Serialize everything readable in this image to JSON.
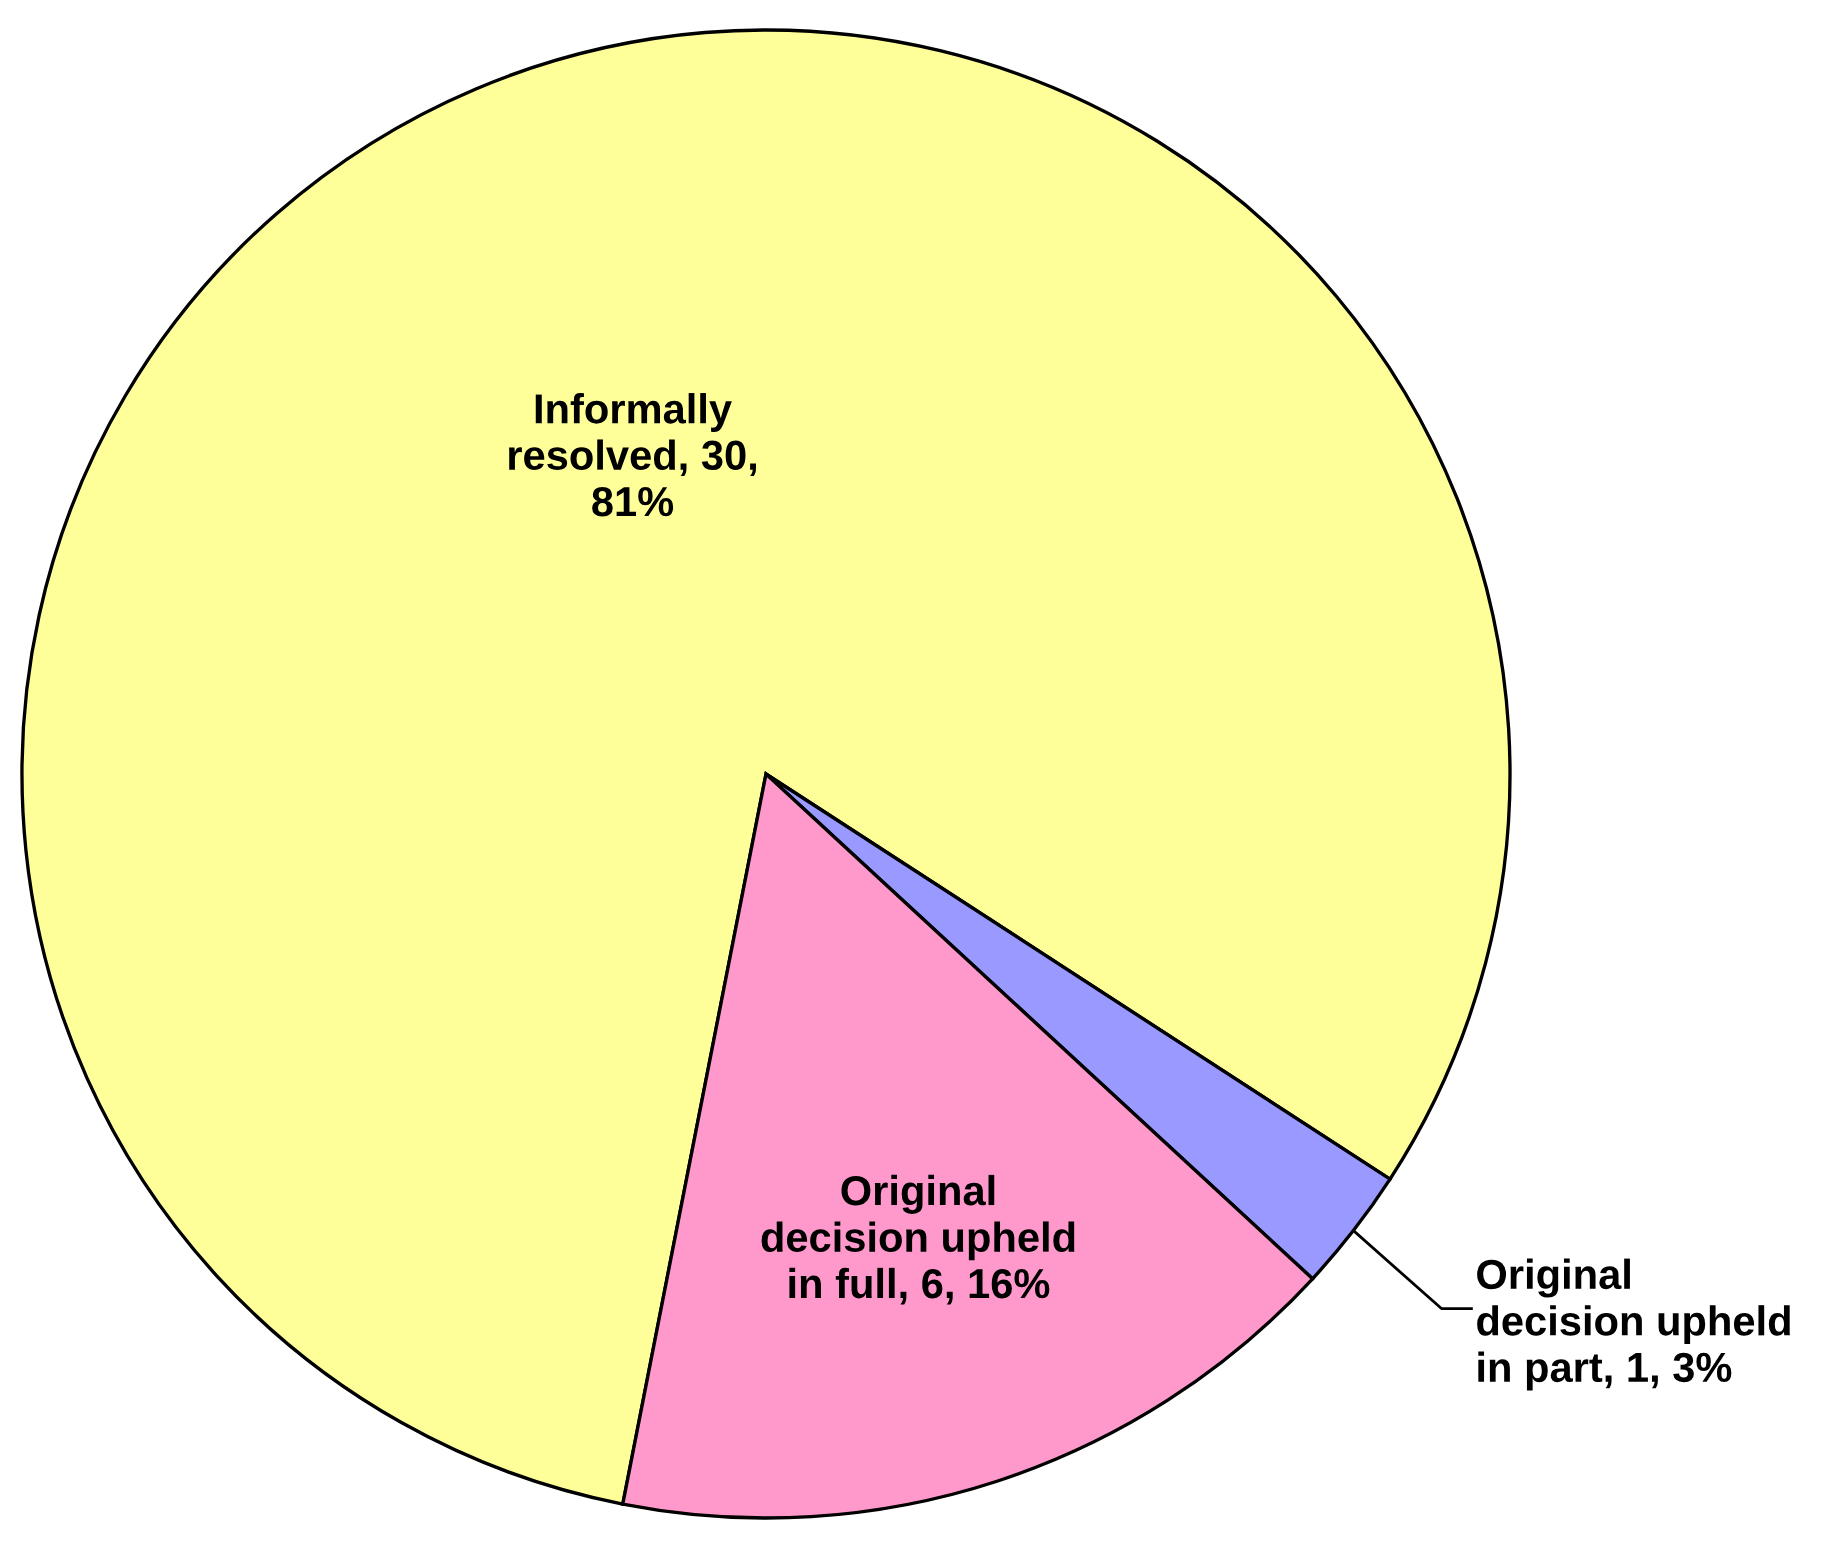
{
  "chart_data": {
    "type": "pie",
    "categories": [
      "Informally resolved",
      "Original decision upheld in part",
      "Original decision upheld in full"
    ],
    "values": [
      30,
      1,
      6
    ],
    "value_labels": [
      "30, 81%",
      "1, 3%",
      "6, 16%"
    ],
    "colors": [
      "#ffff99",
      "#9999ff",
      "#ff99cc"
    ]
  }
}
